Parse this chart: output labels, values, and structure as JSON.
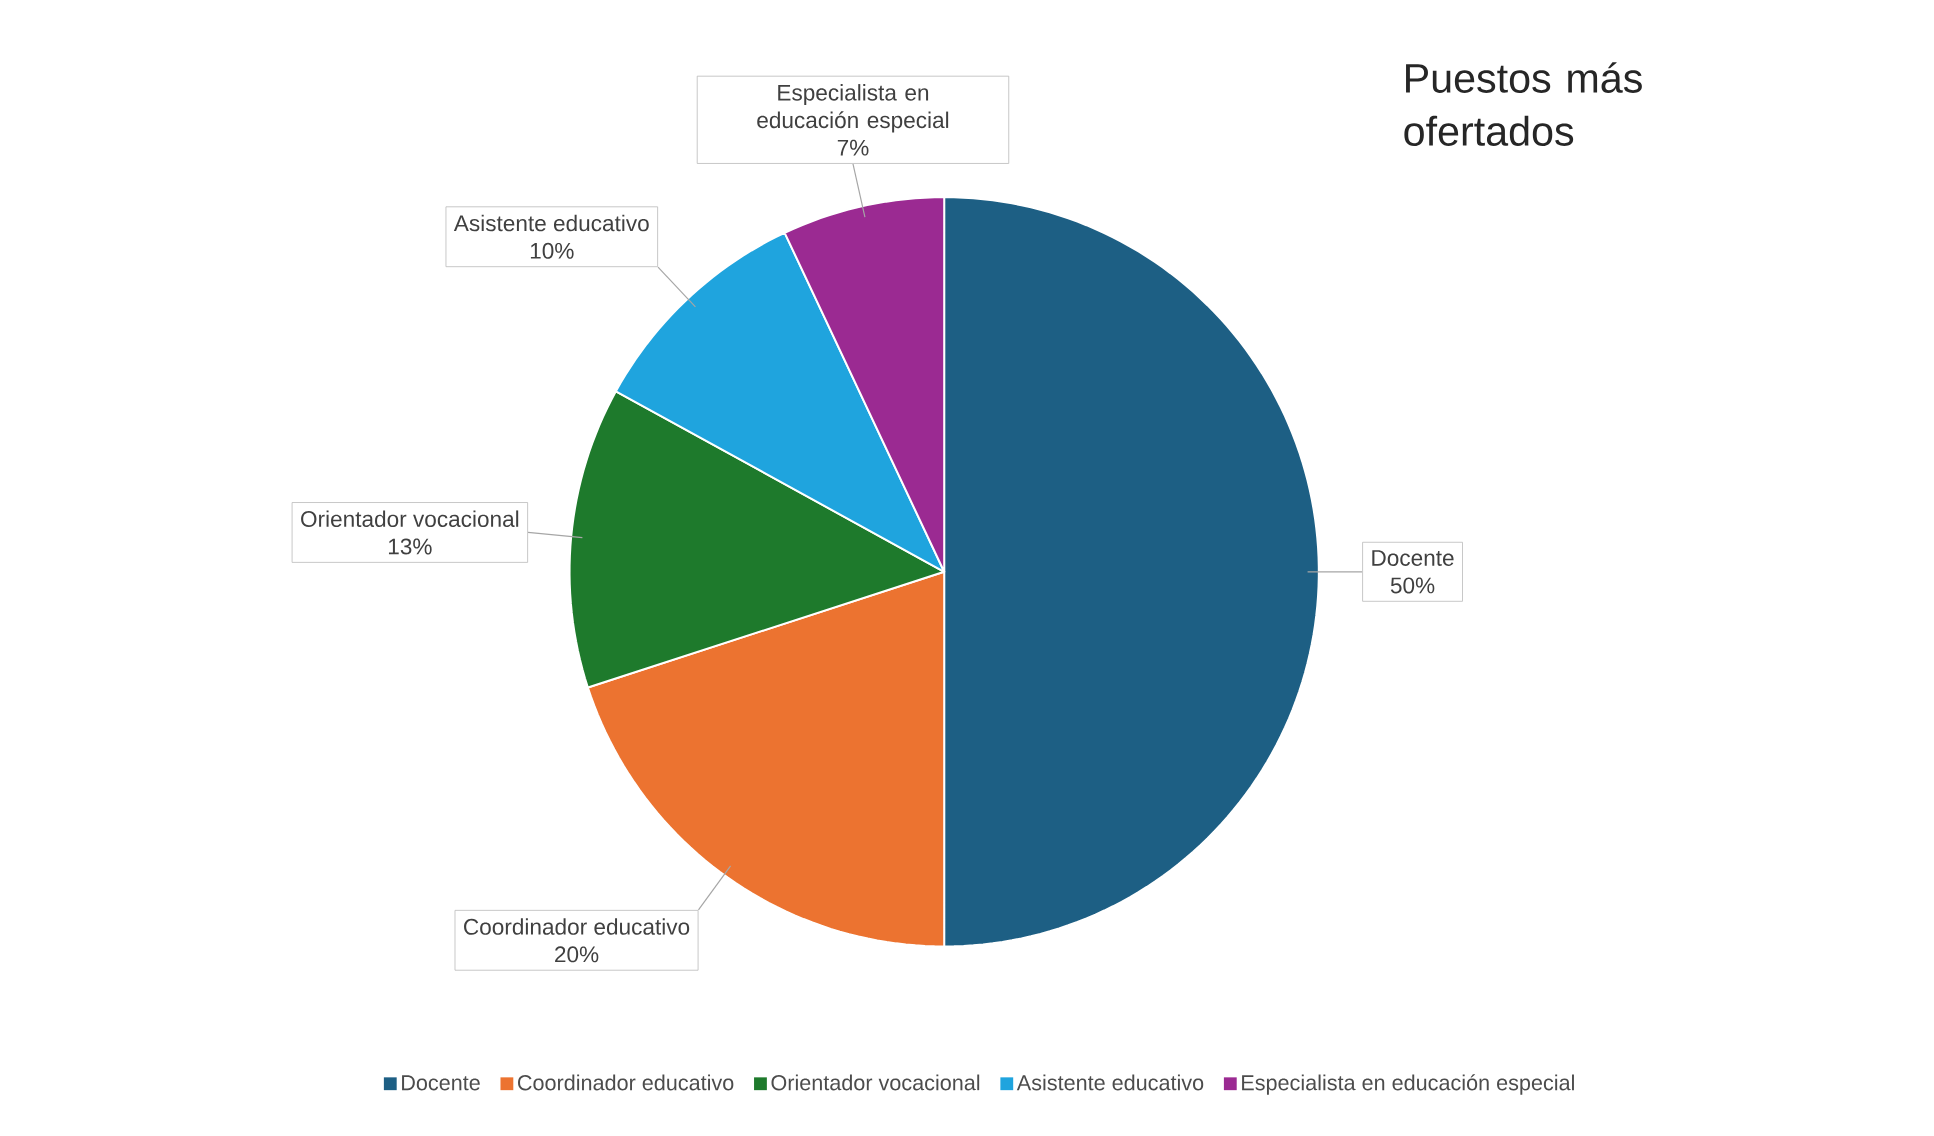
{
  "chart_data": {
    "type": "pie",
    "title": "Puestos más ofertados",
    "categories": [
      "Docente",
      "Coordinador educativo",
      "Orientador vocacional",
      "Asistente educativo",
      "Especialista en educación especial"
    ],
    "values": [
      50,
      20,
      13,
      10,
      7
    ],
    "value_labels": [
      "50%",
      "20%",
      "13%",
      "10%",
      "7%"
    ],
    "colors": [
      "#1d5f84",
      "#ec7330",
      "#1e7a2c",
      "#1fa4de",
      "#9b2a92"
    ],
    "legend": "bottom"
  }
}
